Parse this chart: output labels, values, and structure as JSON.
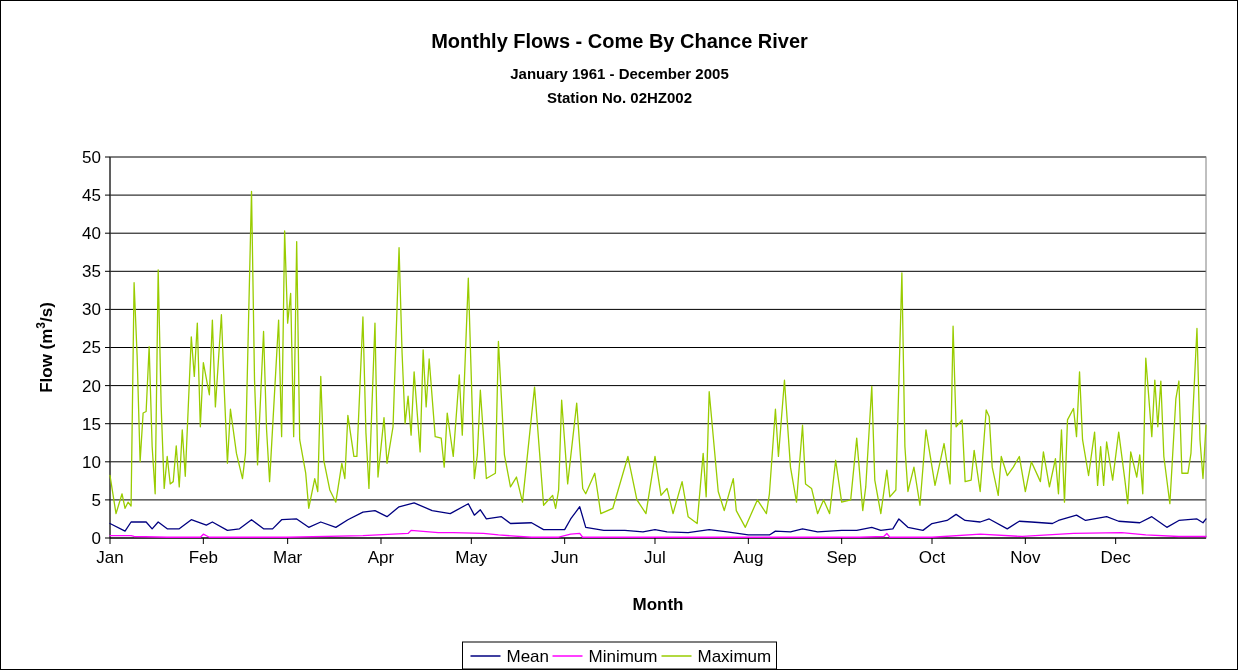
{
  "chart_data": {
    "type": "line",
    "title": "Monthly Flows - Come By Chance River",
    "subtitle": "January 1961 - December 2005\nStation No. 02HZ002",
    "xlabel": "Month",
    "ylabel": "Flow (m$^{3}$/s)",
    "xlim": [
      "--01-01",
      "--12-31"
    ],
    "xticks": [
      {
        "value": "--01-01",
        "label": "Jan"
      },
      {
        "value": "--02-01",
        "label": "Feb"
      },
      {
        "value": "--03-01",
        "label": "Mar"
      },
      {
        "value": "--04-01",
        "label": "Apr"
      },
      {
        "value": "--05-01",
        "label": "May"
      },
      {
        "value": "--06-01",
        "label": "Jun"
      },
      {
        "value": "--07-01",
        "label": "Jul"
      },
      {
        "value": "--08-01",
        "label": "Aug"
      },
      {
        "value": "--09-01",
        "label": "Sep"
      },
      {
        "value": "--10-01",
        "label": "Oct"
      },
      {
        "value": "--11-01",
        "label": "Nov"
      },
      {
        "value": "--12-01",
        "label": "Dec"
      }
    ],
    "ylim": [
      0,
      50
    ],
    "yticks": [
      0,
      5,
      10,
      15,
      20,
      25,
      30,
      35,
      40,
      45,
      50
    ],
    "grid": "y",
    "legend": "bottom",
    "marker": "none",
    "line_style": "solid",
    "series": [
      {
        "name": "Mean",
        "color": "#000080",
        "x": [
          "--01-01",
          "--01-06",
          "--01-08",
          "--01-13",
          "--01-15",
          "--01-17",
          "--01-20",
          "--01-24",
          "--01-28",
          "--02-02",
          "--02-04",
          "--02-09",
          "--02-13",
          "--02-17",
          "--02-21",
          "--02-24",
          "--02-27",
          "--03-04",
          "--03-08",
          "--03-12",
          "--03-17",
          "--03-21",
          "--03-26",
          "--03-30",
          "--04-03",
          "--04-07",
          "--04-12",
          "--04-18",
          "--04-24",
          "--04-30",
          "--05-02",
          "--05-04",
          "--05-06",
          "--05-11",
          "--05-14",
          "--05-21",
          "--05-25",
          "--06-01",
          "--06-03",
          "--06-06",
          "--06-08",
          "--06-14",
          "--06-21",
          "--06-27",
          "--07-01",
          "--07-05",
          "--07-12",
          "--07-19",
          "--07-25",
          "--08-01",
          "--08-08",
          "--08-10",
          "--08-15",
          "--08-19",
          "--08-24",
          "--09-01",
          "--09-06",
          "--09-11",
          "--09-14",
          "--09-18",
          "--09-20",
          "--09-23",
          "--09-28",
          "--10-01",
          "--10-06",
          "--10-09",
          "--10-12",
          "--10-17",
          "--10-20",
          "--10-26",
          "--10-30",
          "--11-03",
          "--11-10",
          "--11-12",
          "--11-18",
          "--11-21",
          "--11-28",
          "--12-02",
          "--12-09",
          "--12-13",
          "--12-18",
          "--12-22",
          "--12-28",
          "--12-30",
          "--12-31"
        ],
        "values": [
          1.9,
          0.9,
          2.1,
          2.1,
          1.2,
          2.1,
          1.2,
          1.2,
          2.4,
          1.7,
          2.1,
          1.0,
          1.2,
          2.4,
          1.2,
          1.2,
          2.4,
          2.5,
          1.4,
          2.1,
          1.4,
          2.4,
          3.4,
          3.6,
          2.8,
          4.1,
          4.6,
          3.6,
          3.2,
          4.5,
          3.0,
          3.7,
          2.5,
          2.8,
          1.9,
          2.0,
          1.1,
          1.1,
          2.5,
          4.1,
          1.4,
          1.0,
          1.0,
          0.8,
          1.1,
          0.8,
          0.7,
          1.1,
          0.8,
          0.4,
          0.4,
          0.9,
          0.8,
          1.2,
          0.8,
          1.0,
          1.0,
          1.4,
          1.0,
          1.2,
          2.5,
          1.4,
          1.0,
          1.9,
          2.3,
          3.1,
          2.3,
          2.1,
          2.5,
          1.2,
          2.2,
          2.1,
          1.9,
          2.3,
          3.0,
          2.3,
          2.8,
          2.2,
          2.0,
          2.8,
          1.4,
          2.3,
          2.5,
          2.0,
          2.5
        ]
      },
      {
        "name": "Minimum",
        "color": "#ff00ff",
        "x": [
          "--01-01",
          "--01-08",
          "--01-09",
          "--01-20",
          "--01-31",
          "--02-01",
          "--02-03",
          "--03-01",
          "--03-26",
          "--03-31",
          "--04-10",
          "--04-11",
          "--04-20",
          "--04-25",
          "--05-05",
          "--05-10",
          "--05-21",
          "--05-30",
          "--06-03",
          "--06-06",
          "--06-07",
          "--06-24",
          "--07-19",
          "--09-07",
          "--09-15",
          "--09-16",
          "--09-17",
          "--10-01",
          "--10-17",
          "--10-31",
          "--11-17",
          "--12-03",
          "--12-11",
          "--12-22",
          "--12-31"
        ],
        "values": [
          0.3,
          0.3,
          0.2,
          0.1,
          0.1,
          0.5,
          0.1,
          0.1,
          0.3,
          0.4,
          0.6,
          1.0,
          0.7,
          0.7,
          0.6,
          0.4,
          0.1,
          0.1,
          0.5,
          0.6,
          0.1,
          0.1,
          0.1,
          0.1,
          0.2,
          0.6,
          0.1,
          0.1,
          0.5,
          0.2,
          0.6,
          0.7,
          0.4,
          0.2,
          0.2
        ]
      },
      {
        "name": "Maximum",
        "color": "#99cc00",
        "x": [
          "--01-01",
          "--01-03",
          "--01-05",
          "--01-06",
          "--01-07",
          "--01-08",
          "--01-09",
          "--01-10",
          "--01-11",
          "--01-12",
          "--01-13",
          "--01-14",
          "--01-15",
          "--01-16",
          "--01-17",
          "--01-18",
          "--01-19",
          "--01-20",
          "--01-21",
          "--01-22",
          "--01-23",
          "--01-24",
          "--01-25",
          "--01-26",
          "--01-28",
          "--01-29",
          "--01-30",
          "--01-31",
          "--02-01",
          "--02-03",
          "--02-04",
          "--02-05",
          "--02-07",
          "--02-08",
          "--02-09",
          "--02-10",
          "--02-12",
          "--02-14",
          "--02-15",
          "--02-17",
          "--02-18",
          "--02-19",
          "--02-21",
          "--02-22",
          "--02-23",
          "--02-26",
          "--02-27",
          "--02-28",
          "--03-01",
          "--03-02",
          "--03-03",
          "--03-04",
          "--03-05",
          "--03-07",
          "--03-08",
          "--03-10",
          "--03-11",
          "--03-12",
          "--03-13",
          "--03-15",
          "--03-17",
          "--03-19",
          "--03-20",
          "--03-21",
          "--03-23",
          "--03-24",
          "--03-26",
          "--03-27",
          "--03-28",
          "--03-30",
          "--03-31",
          "--04-02",
          "--04-03",
          "--04-05",
          "--04-07",
          "--04-08",
          "--04-09",
          "--04-10",
          "--04-11",
          "--04-12",
          "--04-14",
          "--04-15",
          "--04-16",
          "--04-17",
          "--04-19",
          "--04-21",
          "--04-22",
          "--04-23",
          "--04-25",
          "--04-27",
          "--04-28",
          "--04-30",
          "--05-02",
          "--05-03",
          "--05-04",
          "--05-06",
          "--05-09",
          "--05-10",
          "--05-12",
          "--05-14",
          "--05-16",
          "--05-18",
          "--05-22",
          "--05-25",
          "--05-28",
          "--05-29",
          "--05-30",
          "--05-31",
          "--06-02",
          "--06-05",
          "--06-07",
          "--06-08",
          "--06-11",
          "--06-13",
          "--06-17",
          "--06-22",
          "--06-25",
          "--06-28",
          "--07-01",
          "--07-03",
          "--07-05",
          "--07-07",
          "--07-10",
          "--07-12",
          "--07-15",
          "--07-17",
          "--07-18",
          "--07-19",
          "--07-22",
          "--07-24",
          "--07-27",
          "--07-28",
          "--07-31",
          "--08-04",
          "--08-07",
          "--08-08",
          "--08-10",
          "--08-11",
          "--08-13",
          "--08-15",
          "--08-17",
          "--08-19",
          "--08-20",
          "--08-22",
          "--08-24",
          "--08-26",
          "--08-28",
          "--08-30",
          "--09-01",
          "--09-04",
          "--09-06",
          "--09-08",
          "--09-09",
          "--09-11",
          "--09-12",
          "--09-14",
          "--09-16",
          "--09-17",
          "--09-19",
          "--09-21",
          "--09-22",
          "--09-23",
          "--09-25",
          "--09-27",
          "--09-29",
          "--10-02",
          "--10-05",
          "--10-07",
          "--10-08",
          "--10-09",
          "--10-11",
          "--10-12",
          "--10-14",
          "--10-15",
          "--10-17",
          "--10-19",
          "--10-20",
          "--10-21",
          "--10-23",
          "--10-24",
          "--10-26",
          "--10-28",
          "--10-30",
          "--11-01",
          "--11-03",
          "--11-06",
          "--11-07",
          "--11-09",
          "--11-11",
          "--11-12",
          "--11-13",
          "--11-14",
          "--11-15",
          "--11-17",
          "--11-18",
          "--11-19",
          "--11-20",
          "--11-22",
          "--11-24",
          "--11-25",
          "--11-26",
          "--11-27",
          "--11-28",
          "--11-30",
          "--12-02",
          "--12-04",
          "--12-05",
          "--12-06",
          "--12-08",
          "--12-09",
          "--12-10",
          "--12-11",
          "--12-13",
          "--12-14",
          "--12-15",
          "--12-16",
          "--12-17",
          "--12-19",
          "--12-21",
          "--12-22",
          "--12-23",
          "--12-25",
          "--12-26",
          "--12-28",
          "--12-29",
          "--12-30",
          "--12-31"
        ],
        "values": [
          8.2,
          3.2,
          5.8,
          3.9,
          4.7,
          4.2,
          33.5,
          24,
          10,
          16.4,
          16.6,
          25.1,
          12,
          5.8,
          35.2,
          17.2,
          6.5,
          10.7,
          7.1,
          7.4,
          12.1,
          6.7,
          14.2,
          8.1,
          26.4,
          21.2,
          28.2,
          14.6,
          23,
          18.8,
          28.6,
          17.2,
          29.3,
          19,
          9.8,
          16.9,
          11.1,
          7.8,
          11.1,
          45.5,
          20.7,
          9.6,
          27.1,
          14.2,
          7.4,
          28.6,
          13.3,
          40.3,
          28.2,
          32.1,
          13.3,
          38.9,
          12.9,
          8.5,
          3.9,
          7.8,
          6.1,
          21.2,
          10.2,
          6.3,
          4.7,
          9.8,
          7.8,
          16.1,
          10.7,
          10.7,
          29,
          13.8,
          6.5,
          28.2,
          8,
          15.8,
          9.8,
          14.6,
          38.1,
          24.3,
          15,
          18.6,
          13.5,
          21.8,
          11.3,
          24.7,
          17.2,
          23.5,
          13.3,
          13.1,
          9.3,
          16.4,
          10.7,
          21.4,
          13.5,
          34.1,
          7.8,
          10.9,
          19.4,
          7.8,
          8.5,
          25.8,
          10.9,
          6.7,
          8,
          4.7,
          19.8,
          4.3,
          5.6,
          3.9,
          6.3,
          18.1,
          7.1,
          17.7,
          6.5,
          5.8,
          8.5,
          3.2,
          3.9,
          10.7,
          5,
          3.2,
          10.7,
          5.6,
          6.5,
          3.2,
          7.4,
          2.8,
          1.9,
          11.1,
          5.4,
          19.2,
          6.1,
          3.6,
          7.8,
          3.6,
          1.4,
          5,
          3.2,
          5.8,
          16.9,
          10.7,
          20.7,
          9.3,
          4.7,
          14.8,
          7.1,
          6.5,
          3.2,
          5,
          3.2,
          10.2,
          4.7,
          5,
          13.1,
          3.6,
          6.7,
          19.9,
          7.6,
          3.2,
          8.9,
          5.4,
          6.3,
          34.8,
          12,
          6.1,
          9.3,
          4.3,
          14.2,
          6.9,
          12.4,
          7.1,
          27.8,
          14.6,
          15.5,
          7.4,
          7.6,
          11.5,
          6.1,
          16.8,
          15.9,
          9.3,
          5.6,
          10.7,
          8.2,
          9.3,
          10.7,
          6.1,
          10,
          7.4,
          11.3,
          6.7,
          10.4,
          5.8,
          14.2,
          4.7,
          15.5,
          17,
          13.3,
          21.8,
          12.9,
          8.2,
          13.9,
          6.9,
          12,
          6.9,
          12.6,
          7.6,
          13.9,
          7.8,
          4.5,
          11.3,
          8,
          10.9,
          5.8,
          23.6,
          13.3,
          20.7,
          14.6,
          20.6,
          10.7,
          4.5,
          18.3,
          20.6,
          8.5,
          8.5,
          11.1,
          27.5,
          12.9,
          7.8,
          14.8
        ]
      }
    ]
  }
}
